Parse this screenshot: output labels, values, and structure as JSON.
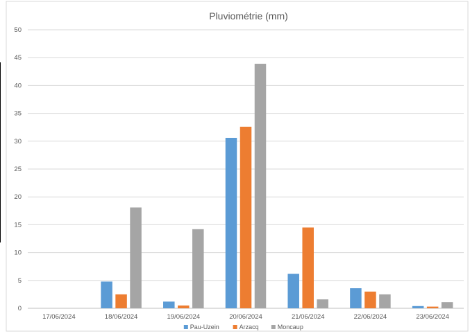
{
  "chart_data": {
    "type": "bar",
    "title": "Pluviométrie  (mm)",
    "categories": [
      "17/06/2024",
      "18/06/2024",
      "19/06/2024",
      "20/06/2024",
      "21/06/2024",
      "22/06/2024",
      "23/06/2024"
    ],
    "series": [
      {
        "name": "Pau-Uzein",
        "color": "#5b9bd5",
        "values": [
          0,
          4.8,
          1.2,
          30.6,
          6.2,
          3.6,
          0.4
        ]
      },
      {
        "name": "Arzacq",
        "color": "#ed7d31",
        "values": [
          0,
          2.5,
          0.5,
          32.6,
          14.5,
          3.0,
          0.3
        ]
      },
      {
        "name": "Moncaup",
        "color": "#a5a5a5",
        "values": [
          0,
          18.1,
          14.2,
          43.9,
          1.6,
          2.5,
          1.1
        ]
      }
    ],
    "ylim": [
      0,
      50
    ],
    "yticks": [
      0,
      5,
      10,
      15,
      20,
      25,
      30,
      35,
      40,
      45,
      50
    ],
    "grid": true,
    "legend": "bottom"
  }
}
